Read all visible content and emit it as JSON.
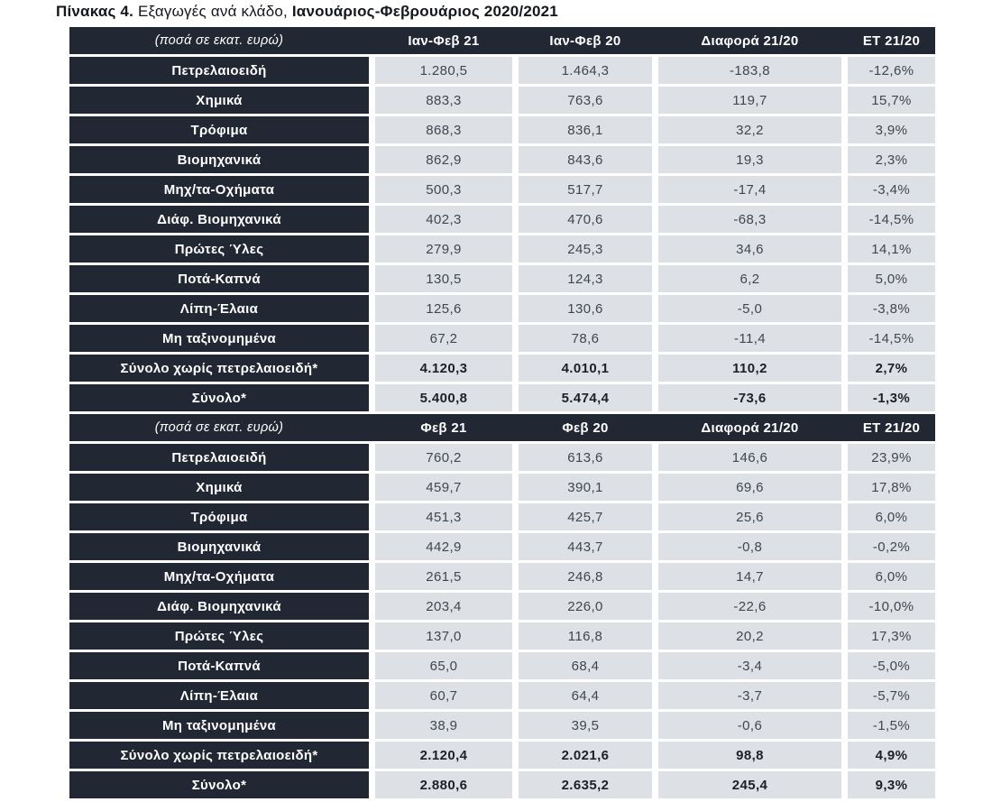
{
  "title": {
    "bold_lead": "Πίνακας 4.",
    "regular_mid": "Εξαγωγές ανά κλάδο,",
    "bold_tail": "Ιανουάριος-Φεβρουάριος 2020/2021"
  },
  "colors": {
    "header_bg": "#212833",
    "cell_bg": "#dde0e4",
    "cell_text": "#41464f",
    "header_text": "#ffffff",
    "page_bg": "#ffffff"
  },
  "table": {
    "sections": [
      {
        "unit_label": "(ποσά σε εκατ. ευρώ)",
        "columns": [
          "Ιαν-Φεβ 21",
          "Ιαν-Φεβ 20",
          "Διαφορά 21/20",
          "ΕΤ 21/20"
        ],
        "rows": [
          {
            "label": "Πετρελαιοειδή",
            "values": [
              "1.280,5",
              "1.464,3",
              "-183,8",
              "-12,6%"
            ],
            "bold": false
          },
          {
            "label": "Χημικά",
            "values": [
              "883,3",
              "763,6",
              "119,7",
              "15,7%"
            ],
            "bold": false
          },
          {
            "label": "Τρόφιμα",
            "values": [
              "868,3",
              "836,1",
              "32,2",
              "3,9%"
            ],
            "bold": false
          },
          {
            "label": "Βιομηχανικά",
            "values": [
              "862,9",
              "843,6",
              "19,3",
              "2,3%"
            ],
            "bold": false
          },
          {
            "label": "Μηχ/τα-Οχήματα",
            "values": [
              "500,3",
              "517,7",
              "-17,4",
              "-3,4%"
            ],
            "bold": false
          },
          {
            "label": "Διάφ. Βιομηχανικά",
            "values": [
              "402,3",
              "470,6",
              "-68,3",
              "-14,5%"
            ],
            "bold": false
          },
          {
            "label": "Πρώτες Ύλες",
            "values": [
              "279,9",
              "245,3",
              "34,6",
              "14,1%"
            ],
            "bold": false
          },
          {
            "label": "Ποτά-Καπνά",
            "values": [
              "130,5",
              "124,3",
              "6,2",
              "5,0%"
            ],
            "bold": false
          },
          {
            "label": "Λίπη-Έλαια",
            "values": [
              "125,6",
              "130,6",
              "-5,0",
              "-3,8%"
            ],
            "bold": false
          },
          {
            "label": "Μη ταξινομημένα",
            "values": [
              "67,2",
              "78,6",
              "-11,4",
              "-14,5%"
            ],
            "bold": false
          },
          {
            "label": "Σύνολο χωρίς πετρελαιοειδή*",
            "values": [
              "4.120,3",
              "4.010,1",
              "110,2",
              "2,7%"
            ],
            "bold": true
          },
          {
            "label": "Σύνολο*",
            "values": [
              "5.400,8",
              "5.474,4",
              "-73,6",
              "-1,3%"
            ],
            "bold": true
          }
        ]
      },
      {
        "unit_label": "(ποσά σε εκατ. ευρώ)",
        "columns": [
          "Φεβ 21",
          "Φεβ 20",
          "Διαφορά 21/20",
          "ΕΤ 21/20"
        ],
        "rows": [
          {
            "label": "Πετρελαιοειδή",
            "values": [
              "760,2",
              "613,6",
              "146,6",
              "23,9%"
            ],
            "bold": false
          },
          {
            "label": "Χημικά",
            "values": [
              "459,7",
              "390,1",
              "69,6",
              "17,8%"
            ],
            "bold": false
          },
          {
            "label": "Τρόφιμα",
            "values": [
              "451,3",
              "425,7",
              "25,6",
              "6,0%"
            ],
            "bold": false
          },
          {
            "label": "Βιομηχανικά",
            "values": [
              "442,9",
              "443,7",
              "-0,8",
              "-0,2%"
            ],
            "bold": false
          },
          {
            "label": "Μηχ/τα-Οχήματα",
            "values": [
              "261,5",
              "246,8",
              "14,7",
              "6,0%"
            ],
            "bold": false
          },
          {
            "label": "Διάφ. Βιομηχανικά",
            "values": [
              "203,4",
              "226,0",
              "-22,6",
              "-10,0%"
            ],
            "bold": false
          },
          {
            "label": "Πρώτες Ύλες",
            "values": [
              "137,0",
              "116,8",
              "20,2",
              "17,3%"
            ],
            "bold": false
          },
          {
            "label": "Ποτά-Καπνά",
            "values": [
              "65,0",
              "68,4",
              "-3,4",
              "-5,0%"
            ],
            "bold": false
          },
          {
            "label": "Λίπη-Έλαια",
            "values": [
              "60,7",
              "64,4",
              "-3,7",
              "-5,7%"
            ],
            "bold": false
          },
          {
            "label": "Μη ταξινομημένα",
            "values": [
              "38,9",
              "39,5",
              "-0,6",
              "-1,5%"
            ],
            "bold": false
          },
          {
            "label": "Σύνολο χωρίς πετρελαιοειδή*",
            "values": [
              "2.120,4",
              "2.021,6",
              "98,8",
              "4,9%"
            ],
            "bold": true
          },
          {
            "label": "Σύνολο*",
            "values": [
              "2.880,6",
              "2.635,2",
              "245,4",
              "9,3%"
            ],
            "bold": true
          }
        ]
      }
    ]
  }
}
